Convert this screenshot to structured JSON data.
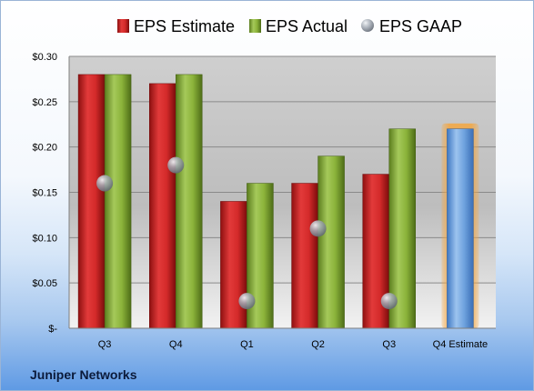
{
  "chart_data": {
    "type": "bar",
    "title": "",
    "xlabel": "",
    "ylabel": "",
    "categories": [
      "Q3",
      "Q4",
      "Q1",
      "Q2",
      "Q3",
      "Q4 Estimate"
    ],
    "ylim": [
      0,
      0.3
    ],
    "yticks": [
      0,
      0.05,
      0.1,
      0.15,
      0.2,
      0.25,
      0.3
    ],
    "ytick_labels": [
      "$-",
      "$0.05",
      "$0.10",
      "$0.15",
      "$0.20",
      "$0.25",
      "$0.30"
    ],
    "grid": true,
    "legend_position": "top",
    "series": [
      {
        "name": "EPS Estimate",
        "kind": "bar",
        "color": "#d42a2a",
        "values": [
          0.28,
          0.27,
          0.14,
          0.16,
          0.17,
          null
        ]
      },
      {
        "name": "EPS Actual",
        "kind": "bar",
        "color": "#8bb33a",
        "values": [
          0.28,
          0.28,
          0.16,
          0.19,
          0.22,
          null
        ]
      },
      {
        "name": "EPS GAAP",
        "kind": "marker",
        "color": "#9ea9b6",
        "values": [
          0.16,
          0.18,
          0.03,
          0.11,
          0.03,
          null
        ]
      }
    ],
    "estimate_bar": {
      "category": "Q4 Estimate",
      "value": 0.22,
      "color": "#6ea2de",
      "highlight": "#f4a640"
    }
  },
  "footer": {
    "company": "Juniper Networks"
  }
}
